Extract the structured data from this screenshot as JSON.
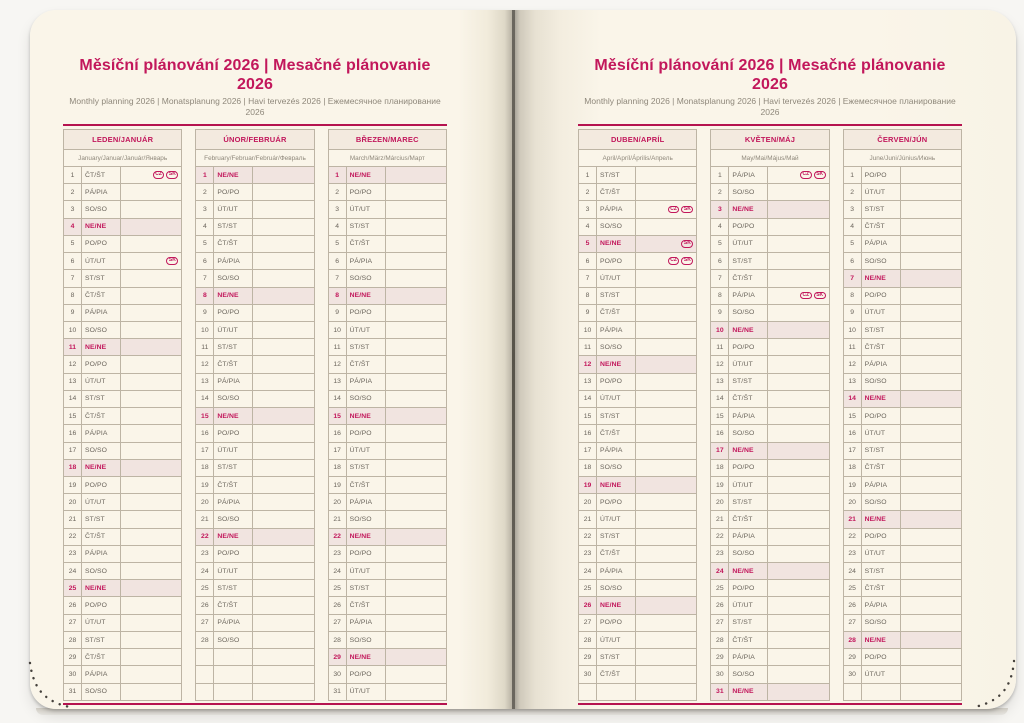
{
  "title": "Měsíční plánování 2026 | Mesačné plánovanie 2026",
  "subtitle": "Monthly planning 2026 | Monatsplanung 2026 | Havi tervezés 2026 | Ежемесячное планирование 2026",
  "colors": {
    "accent": "#c2175b",
    "rule": "#b5134f",
    "sunday_row_bg": "#f1e4e0",
    "month_header_bg": "#f3eadf",
    "page_background": "#faf5e9",
    "table_border": "#bdb4a4",
    "body_text": "#6b655c"
  },
  "holiday_badges": [
    "CZ",
    "SK"
  ],
  "grid_rows_per_month": 31,
  "pages": [
    {
      "side": "left",
      "months": [
        {
          "name": "LEDEN/JANUÁR",
          "languages": "January/Januar/Január/Январь",
          "days": [
            [
              1,
              "ČT/ŠT",
              [
                "CZ",
                "SK"
              ]
            ],
            [
              2,
              "PÁ/PIA"
            ],
            [
              3,
              "SO/SO"
            ],
            [
              4,
              "NE/NE"
            ],
            [
              5,
              "PO/PO"
            ],
            [
              6,
              "ÚT/UT",
              [
                "SK"
              ]
            ],
            [
              7,
              "ST/ST"
            ],
            [
              8,
              "ČT/ŠT"
            ],
            [
              9,
              "PÁ/PIA"
            ],
            [
              10,
              "SO/SO"
            ],
            [
              11,
              "NE/NE"
            ],
            [
              12,
              "PO/PO"
            ],
            [
              13,
              "ÚT/UT"
            ],
            [
              14,
              "ST/ST"
            ],
            [
              15,
              "ČT/ŠT"
            ],
            [
              16,
              "PÁ/PIA"
            ],
            [
              17,
              "SO/SO"
            ],
            [
              18,
              "NE/NE"
            ],
            [
              19,
              "PO/PO"
            ],
            [
              20,
              "ÚT/UT"
            ],
            [
              21,
              "ST/ST"
            ],
            [
              22,
              "ČT/ŠT"
            ],
            [
              23,
              "PÁ/PIA"
            ],
            [
              24,
              "SO/SO"
            ],
            [
              25,
              "NE/NE"
            ],
            [
              26,
              "PO/PO"
            ],
            [
              27,
              "ÚT/UT"
            ],
            [
              28,
              "ST/ST"
            ],
            [
              29,
              "ČT/ŠT"
            ],
            [
              30,
              "PÁ/PIA"
            ],
            [
              31,
              "SO/SO"
            ]
          ]
        },
        {
          "name": "ÚNOR/FEBRUÁR",
          "languages": "February/Februar/Február/Февраль",
          "days": [
            [
              1,
              "NE/NE"
            ],
            [
              2,
              "PO/PO"
            ],
            [
              3,
              "ÚT/UT"
            ],
            [
              4,
              "ST/ST"
            ],
            [
              5,
              "ČT/ŠT"
            ],
            [
              6,
              "PÁ/PIA"
            ],
            [
              7,
              "SO/SO"
            ],
            [
              8,
              "NE/NE"
            ],
            [
              9,
              "PO/PO"
            ],
            [
              10,
              "ÚT/UT"
            ],
            [
              11,
              "ST/ST"
            ],
            [
              12,
              "ČT/ŠT"
            ],
            [
              13,
              "PÁ/PIA"
            ],
            [
              14,
              "SO/SO"
            ],
            [
              15,
              "NE/NE"
            ],
            [
              16,
              "PO/PO"
            ],
            [
              17,
              "ÚT/UT"
            ],
            [
              18,
              "ST/ST"
            ],
            [
              19,
              "ČT/ŠT"
            ],
            [
              20,
              "PÁ/PIA"
            ],
            [
              21,
              "SO/SO"
            ],
            [
              22,
              "NE/NE"
            ],
            [
              23,
              "PO/PO"
            ],
            [
              24,
              "ÚT/UT"
            ],
            [
              25,
              "ST/ST"
            ],
            [
              26,
              "ČT/ŠT"
            ],
            [
              27,
              "PÁ/PIA"
            ],
            [
              28,
              "SO/SO"
            ]
          ]
        },
        {
          "name": "BŘEZEN/MAREC",
          "languages": "March/März/Március/Март",
          "days": [
            [
              1,
              "NE/NE"
            ],
            [
              2,
              "PO/PO"
            ],
            [
              3,
              "ÚT/UT"
            ],
            [
              4,
              "ST/ST"
            ],
            [
              5,
              "ČT/ŠT"
            ],
            [
              6,
              "PÁ/PIA"
            ],
            [
              7,
              "SO/SO"
            ],
            [
              8,
              "NE/NE"
            ],
            [
              9,
              "PO/PO"
            ],
            [
              10,
              "ÚT/UT"
            ],
            [
              11,
              "ST/ST"
            ],
            [
              12,
              "ČT/ŠT"
            ],
            [
              13,
              "PÁ/PIA"
            ],
            [
              14,
              "SO/SO"
            ],
            [
              15,
              "NE/NE"
            ],
            [
              16,
              "PO/PO"
            ],
            [
              17,
              "ÚT/UT"
            ],
            [
              18,
              "ST/ST"
            ],
            [
              19,
              "ČT/ŠT"
            ],
            [
              20,
              "PÁ/PIA"
            ],
            [
              21,
              "SO/SO"
            ],
            [
              22,
              "NE/NE"
            ],
            [
              23,
              "PO/PO"
            ],
            [
              24,
              "ÚT/UT"
            ],
            [
              25,
              "ST/ST"
            ],
            [
              26,
              "ČT/ŠT"
            ],
            [
              27,
              "PÁ/PIA"
            ],
            [
              28,
              "SO/SO"
            ],
            [
              29,
              "NE/NE"
            ],
            [
              30,
              "PO/PO"
            ],
            [
              31,
              "ÚT/UT"
            ]
          ]
        }
      ]
    },
    {
      "side": "right",
      "months": [
        {
          "name": "DUBEN/APRÍL",
          "languages": "April/Apríl/Április/Апрель",
          "days": [
            [
              1,
              "ST/ST"
            ],
            [
              2,
              "ČT/ŠT"
            ],
            [
              3,
              "PÁ/PIA",
              [
                "CZ",
                "SK"
              ]
            ],
            [
              4,
              "SO/SO"
            ],
            [
              5,
              "NE/NE",
              [
                "SK"
              ]
            ],
            [
              6,
              "PO/PO",
              [
                "CZ",
                "SK"
              ]
            ],
            [
              7,
              "ÚT/UT"
            ],
            [
              8,
              "ST/ST"
            ],
            [
              9,
              "ČT/ŠT"
            ],
            [
              10,
              "PÁ/PIA"
            ],
            [
              11,
              "SO/SO"
            ],
            [
              12,
              "NE/NE"
            ],
            [
              13,
              "PO/PO"
            ],
            [
              14,
              "ÚT/UT"
            ],
            [
              15,
              "ST/ST"
            ],
            [
              16,
              "ČT/ŠT"
            ],
            [
              17,
              "PÁ/PIA"
            ],
            [
              18,
              "SO/SO"
            ],
            [
              19,
              "NE/NE"
            ],
            [
              20,
              "PO/PO"
            ],
            [
              21,
              "ÚT/UT"
            ],
            [
              22,
              "ST/ST"
            ],
            [
              23,
              "ČT/ŠT"
            ],
            [
              24,
              "PÁ/PIA"
            ],
            [
              25,
              "SO/SO"
            ],
            [
              26,
              "NE/NE"
            ],
            [
              27,
              "PO/PO"
            ],
            [
              28,
              "ÚT/UT"
            ],
            [
              29,
              "ST/ST"
            ],
            [
              30,
              "ČT/ŠT"
            ]
          ]
        },
        {
          "name": "KVĚTEN/MÁJ",
          "languages": "May/Mai/Május/Май",
          "days": [
            [
              1,
              "PÁ/PIA",
              [
                "CZ",
                "SK"
              ]
            ],
            [
              2,
              "SO/SO"
            ],
            [
              3,
              "NE/NE"
            ],
            [
              4,
              "PO/PO"
            ],
            [
              5,
              "ÚT/UT"
            ],
            [
              6,
              "ST/ST"
            ],
            [
              7,
              "ČT/ŠT"
            ],
            [
              8,
              "PÁ/PIA",
              [
                "CZ",
                "SK"
              ]
            ],
            [
              9,
              "SO/SO"
            ],
            [
              10,
              "NE/NE"
            ],
            [
              11,
              "PO/PO"
            ],
            [
              12,
              "ÚT/UT"
            ],
            [
              13,
              "ST/ST"
            ],
            [
              14,
              "ČT/ŠT"
            ],
            [
              15,
              "PÁ/PIA"
            ],
            [
              16,
              "SO/SO"
            ],
            [
              17,
              "NE/NE"
            ],
            [
              18,
              "PO/PO"
            ],
            [
              19,
              "ÚT/UT"
            ],
            [
              20,
              "ST/ST"
            ],
            [
              21,
              "ČT/ŠT"
            ],
            [
              22,
              "PÁ/PIA"
            ],
            [
              23,
              "SO/SO"
            ],
            [
              24,
              "NE/NE"
            ],
            [
              25,
              "PO/PO"
            ],
            [
              26,
              "ÚT/UT"
            ],
            [
              27,
              "ST/ST"
            ],
            [
              28,
              "ČT/ŠT"
            ],
            [
              29,
              "PÁ/PIA"
            ],
            [
              30,
              "SO/SO"
            ],
            [
              31,
              "NE/NE"
            ]
          ]
        },
        {
          "name": "ČERVEN/JÚN",
          "languages": "June/Juni/Június/Июнь",
          "days": [
            [
              1,
              "PO/PO"
            ],
            [
              2,
              "ÚT/UT"
            ],
            [
              3,
              "ST/ST"
            ],
            [
              4,
              "ČT/ŠT"
            ],
            [
              5,
              "PÁ/PIA"
            ],
            [
              6,
              "SO/SO"
            ],
            [
              7,
              "NE/NE"
            ],
            [
              8,
              "PO/PO"
            ],
            [
              9,
              "ÚT/UT"
            ],
            [
              10,
              "ST/ST"
            ],
            [
              11,
              "ČT/ŠT"
            ],
            [
              12,
              "PÁ/PIA"
            ],
            [
              13,
              "SO/SO"
            ],
            [
              14,
              "NE/NE"
            ],
            [
              15,
              "PO/PO"
            ],
            [
              16,
              "ÚT/UT"
            ],
            [
              17,
              "ST/ST"
            ],
            [
              18,
              "ČT/ŠT"
            ],
            [
              19,
              "PÁ/PIA"
            ],
            [
              20,
              "SO/SO"
            ],
            [
              21,
              "NE/NE"
            ],
            [
              22,
              "PO/PO"
            ],
            [
              23,
              "ÚT/UT"
            ],
            [
              24,
              "ST/ST"
            ],
            [
              25,
              "ČT/ŠT"
            ],
            [
              26,
              "PÁ/PIA"
            ],
            [
              27,
              "SO/SO"
            ],
            [
              28,
              "NE/NE"
            ],
            [
              29,
              "PO/PO"
            ],
            [
              30,
              "ÚT/UT"
            ]
          ]
        }
      ]
    }
  ]
}
